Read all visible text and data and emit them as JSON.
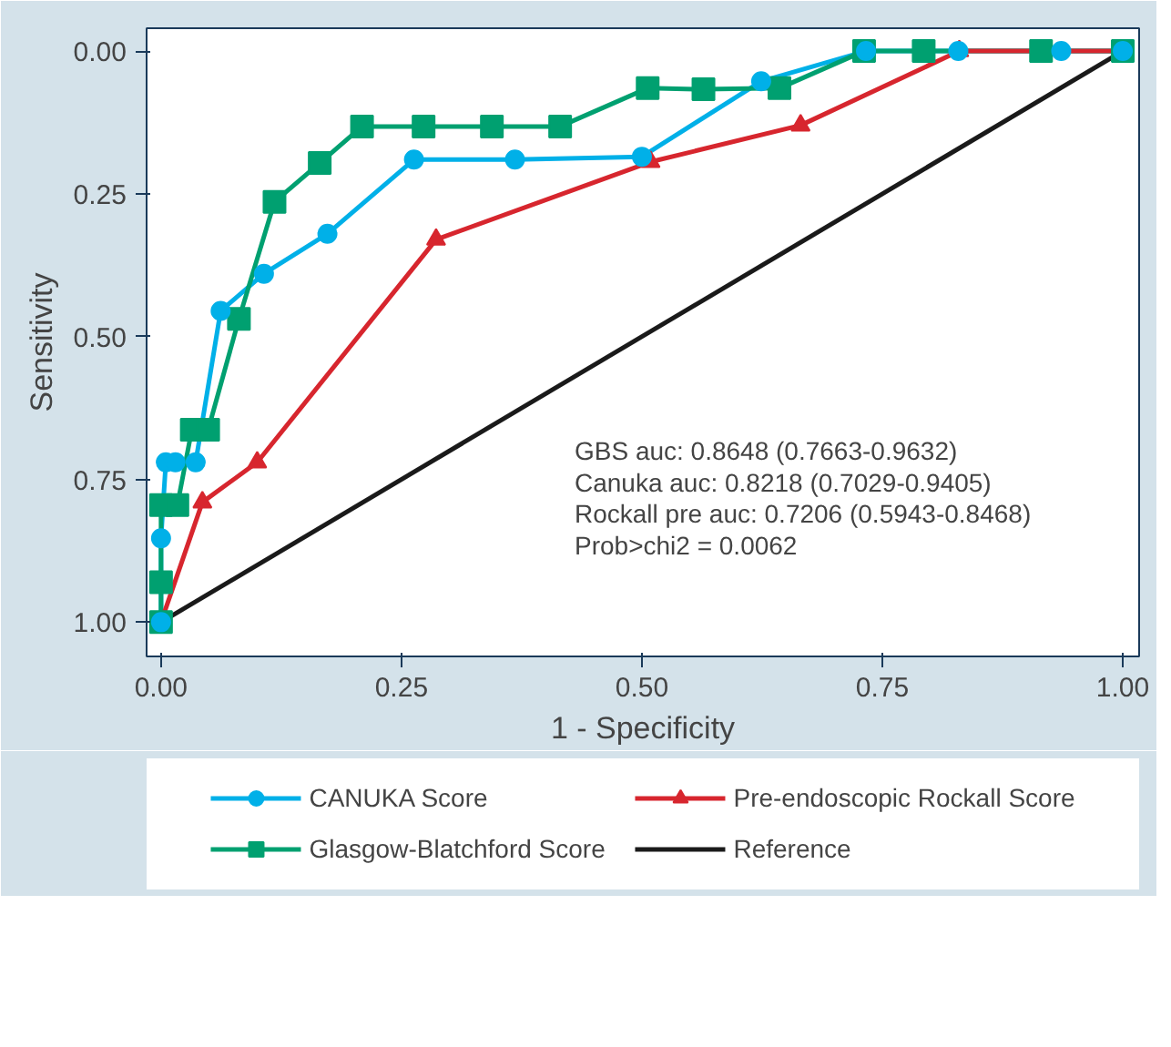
{
  "chart_data": {
    "type": "line",
    "xlabel": "1 - Specificity",
    "ylabel": "Sensitivity",
    "xlim": [
      -0.015,
      1.017
    ],
    "ylim": [
      1.06,
      -0.04
    ],
    "xticks": [
      {
        "value": 0,
        "label": "0.00"
      },
      {
        "value": 0.25,
        "label": "0.25"
      },
      {
        "value": 0.5,
        "label": "0.50"
      },
      {
        "value": 0.75,
        "label": "0.75"
      },
      {
        "value": 1,
        "label": "1.00"
      }
    ],
    "yticks": [
      {
        "value": 0,
        "label": "0.00"
      },
      {
        "value": 0.25,
        "label": "0.25"
      },
      {
        "value": 0.5,
        "label": "0.50"
      },
      {
        "value": 0.75,
        "label": "0.75"
      },
      {
        "value": 1,
        "label": "1.00"
      }
    ],
    "grid": false,
    "legend": "bottom",
    "series": [
      {
        "name": "CANUKA Score",
        "color": "#00b0e8",
        "marker": "circle",
        "x": [
          0,
          0,
          0.005,
          0.015,
          0.036,
          0.062,
          0.107,
          0.173,
          0.263,
          0.368,
          0.5,
          0.624,
          0.733,
          0.829,
          0.936,
          1.0
        ],
        "values": [
          1.0,
          0.853,
          0.72,
          0.72,
          0.72,
          0.455,
          0.39,
          0.32,
          0.19,
          0.19,
          0.185,
          0.053,
          0,
          0,
          0,
          0
        ]
      },
      {
        "name": "Glasgow-Blatchford Score",
        "color": "#00a070",
        "marker": "square",
        "x": [
          0,
          0,
          0,
          0.017,
          0.032,
          0.049,
          0.081,
          0.118,
          0.165,
          0.209,
          0.273,
          0.344,
          0.415,
          0.506,
          0.564,
          0.643,
          0.731,
          0.793,
          0.915,
          1.0
        ],
        "values": [
          1.0,
          0.93,
          0.795,
          0.795,
          0.663,
          0.663,
          0.469,
          0.264,
          0.196,
          0.132,
          0.132,
          0.132,
          0.132,
          0.065,
          0.067,
          0.065,
          0,
          0,
          0,
          0
        ]
      },
      {
        "name": "Pre-endoscopic Rockall Score",
        "color": "#d7262e",
        "marker": "triangle",
        "x": [
          0,
          0.043,
          0.1,
          0.286,
          0.509,
          0.665,
          0.83,
          1.0
        ],
        "values": [
          1.0,
          0.79,
          0.72,
          0.33,
          0.194,
          0.13,
          0,
          0
        ]
      },
      {
        "name": "Reference",
        "color": "#1a1a1a",
        "marker": "none",
        "x": [
          0,
          1
        ],
        "values": [
          1,
          0
        ]
      }
    ],
    "annotations": [
      "GBS auc: 0.8648 (0.7663-0.9632)",
      "Canuka auc: 0.8218 (0.7029-0.9405)",
      "Rockall pre auc: 0.7206 (0.5943-0.8468)",
      "Prob>chi2 = 0.0062"
    ]
  }
}
